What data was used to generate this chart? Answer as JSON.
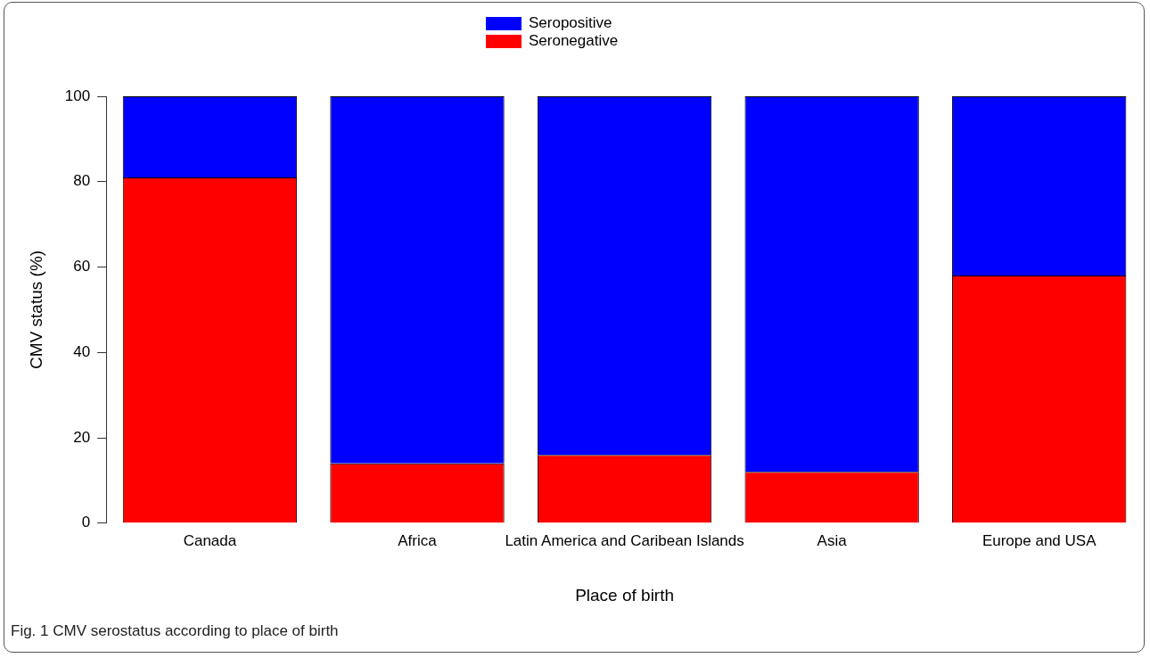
{
  "chart_data": {
    "type": "bar",
    "stacked": true,
    "categories": [
      "Canada",
      "Africa",
      "Latin America and Caribean Islands",
      "Asia",
      "Europe and USA"
    ],
    "series": [
      {
        "name": "Seronegative",
        "color": "#ff0000",
        "values": [
          81,
          14,
          16,
          12,
          58
        ]
      },
      {
        "name": "Seropositive",
        "color": "#0000ff",
        "values": [
          19,
          86,
          84,
          88,
          42
        ]
      }
    ],
    "xlabel": "Place of birth",
    "ylabel": "CMV status (%)",
    "ylim": [
      0,
      100
    ],
    "yticks": [
      0,
      20,
      40,
      60,
      80,
      100
    ],
    "grid": false,
    "legend": "top",
    "annotations": [
      "Fig. 1 CMV serostatus according to place of birth"
    ]
  }
}
